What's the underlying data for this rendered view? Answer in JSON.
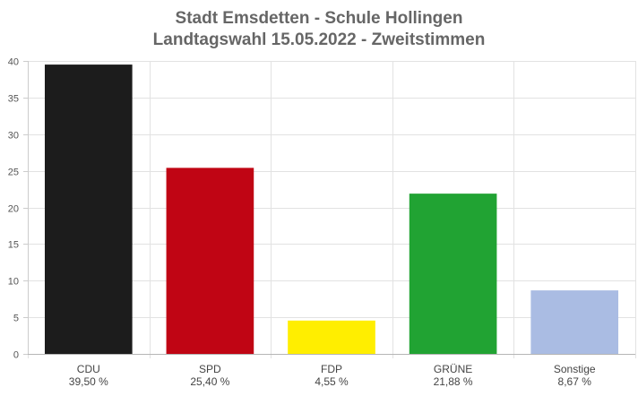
{
  "chart_data": {
    "type": "bar",
    "title": [
      "Stadt Emsdetten - Schule Hollingen",
      "Landtagswahl 15.05.2022  - Zweitstimmen"
    ],
    "categories": [
      "CDU",
      "SPD",
      "FDP",
      "GRÜNE",
      "Sonstige"
    ],
    "value_labels": [
      "39,50 %",
      "25,40 %",
      "4,55 %",
      "21,88 %",
      "8,67 %"
    ],
    "values": [
      39.5,
      25.4,
      4.55,
      21.88,
      8.67
    ],
    "colors": [
      "#1c1c1c",
      "#c00514",
      "#ffee00",
      "#21a333",
      "#aabce3"
    ],
    "ylim": [
      0,
      40
    ],
    "yticks": [
      0,
      5,
      10,
      15,
      20,
      25,
      30,
      35,
      40
    ],
    "grid": true,
    "legend": "none"
  }
}
